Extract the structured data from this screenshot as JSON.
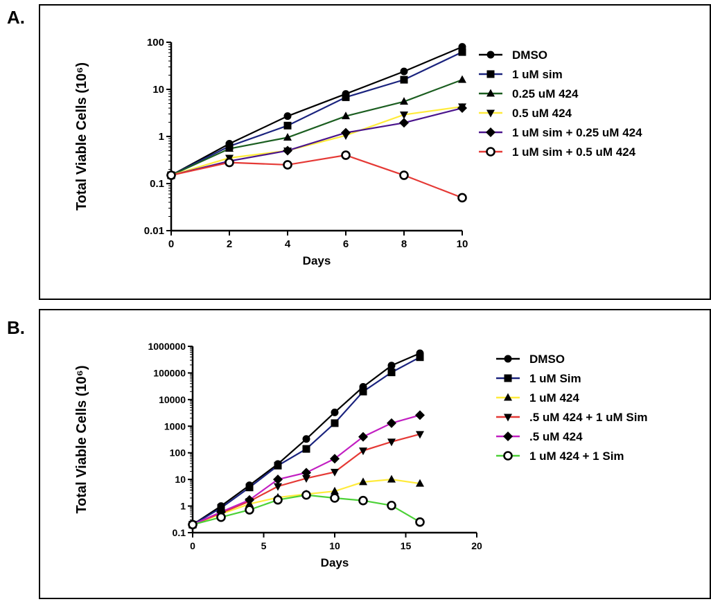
{
  "panels": [
    {
      "label": "A."
    },
    {
      "label": "B."
    }
  ],
  "chart_data": [
    {
      "type": "line",
      "title": "",
      "xlabel": "Days",
      "ylabel": "Total Viable Cells (10⁶)",
      "yscale": "log",
      "xlim": [
        0,
        10
      ],
      "ylim": [
        0.01,
        100
      ],
      "xticks": [
        "0",
        "2",
        "4",
        "6",
        "8",
        "10"
      ],
      "yticks": [
        "0.01",
        "0.1",
        "1",
        "10",
        "100"
      ],
      "legend_position": "right",
      "x": [
        0,
        2,
        4,
        6,
        8,
        10
      ],
      "series": [
        {
          "name": "DMSO",
          "color": "#000000",
          "marker": "circle",
          "values": [
            0.15,
            0.7,
            2.7,
            8,
            24,
            80
          ]
        },
        {
          "name": "1 uM sim",
          "color": "#1a237e",
          "marker": "square",
          "values": [
            0.15,
            0.62,
            1.7,
            6.8,
            16,
            62
          ]
        },
        {
          "name": "0.25 uM 424",
          "color": "#1b5e20",
          "marker": "triangle-up",
          "values": [
            0.15,
            0.55,
            0.95,
            2.7,
            5.5,
            16
          ]
        },
        {
          "name": "0.5 uM 424",
          "color": "#ffeb3b",
          "marker": "triangle-down",
          "values": [
            0.15,
            0.35,
            0.5,
            1.05,
            2.9,
            4.3
          ]
        },
        {
          "name": "1 uM sim + 0.25 uM 424",
          "color": "#4a148c",
          "marker": "diamond",
          "values": [
            0.15,
            0.3,
            0.5,
            1.2,
            1.95,
            4.0
          ]
        },
        {
          "name": "1 uM sim + 0.5 uM 424",
          "color": "#e53935",
          "marker": "circle-open",
          "values": [
            0.15,
            0.28,
            0.25,
            0.4,
            0.15,
            0.05
          ]
        }
      ]
    },
    {
      "type": "line",
      "title": "",
      "xlabel": "Days",
      "ylabel": "Total Viable Cells (10⁶)",
      "yscale": "log",
      "xlim": [
        0,
        20
      ],
      "ylim": [
        0.1,
        1000000
      ],
      "xticks": [
        "0",
        "5",
        "10",
        "15",
        "20"
      ],
      "yticks": [
        "0.1",
        "1",
        "10",
        "100",
        "1000",
        "10000",
        "100000",
        "1000000"
      ],
      "legend_position": "right",
      "x": [
        0,
        2,
        4,
        6,
        8,
        10,
        12,
        14,
        16
      ],
      "series": [
        {
          "name": "DMSO",
          "color": "#000000",
          "marker": "circle",
          "values": [
            0.2,
            1.0,
            6,
            38,
            330,
            3300,
            30000,
            190000,
            550000
          ]
        },
        {
          "name": "1 uM Sim",
          "color": "#1a237e",
          "marker": "square",
          "values": [
            0.2,
            0.85,
            5,
            33,
            140,
            1300,
            20000,
            105000,
            390000
          ]
        },
        {
          "name": "1 uM 424",
          "color": "#ffeb3b",
          "marker": "triangle-up",
          "values": [
            0.2,
            0.5,
            1.2,
            2.1,
            2.8,
            3.6,
            8,
            10,
            7
          ]
        },
        {
          "name": ".5 uM 424 + 1 uM Sim",
          "color": "#e53935",
          "marker": "triangle-down",
          "values": [
            0.2,
            0.55,
            1.5,
            5.5,
            11,
            19,
            120,
            260,
            500
          ]
        },
        {
          "name": ".5 uM 424",
          "color": "#c21fc2",
          "marker": "diamond",
          "values": [
            0.2,
            0.6,
            1.7,
            10,
            18,
            60,
            400,
            1300,
            2600
          ]
        },
        {
          "name": "1 uM 424 + 1 Sim",
          "color": "#4cd137",
          "marker": "circle-open",
          "values": [
            0.2,
            0.38,
            0.72,
            1.7,
            2.6,
            2.0,
            1.6,
            1.05,
            0.25
          ]
        }
      ]
    }
  ]
}
